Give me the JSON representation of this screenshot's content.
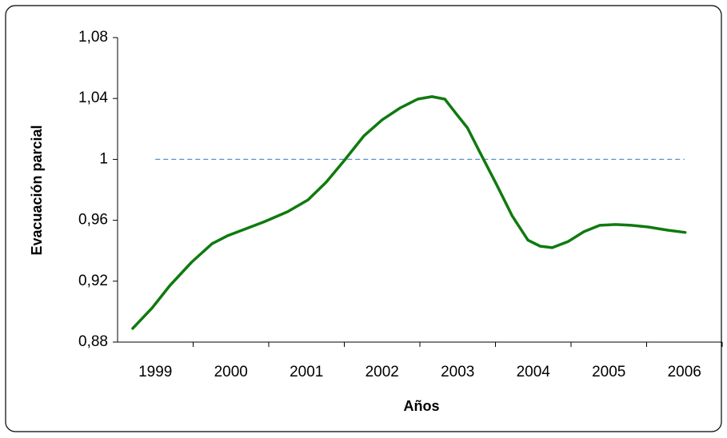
{
  "chart_data": {
    "type": "line",
    "xlabel": "Años",
    "ylabel": "Evacuación parcial",
    "x": [
      1998.7,
      1998.96,
      1999.19,
      1999.48,
      1999.75,
      1999.96,
      2000.44,
      2000.75,
      2001.02,
      2001.26,
      2001.49,
      2001.76,
      2002.0,
      2002.24,
      2002.47,
      2002.66,
      2002.83,
      2002.98,
      2003.13,
      2003.29,
      2003.51,
      2003.72,
      2003.93,
      2004.09,
      2004.25,
      2004.46,
      2004.67,
      2004.88,
      2005.09,
      2005.3,
      2005.52,
      2005.78,
      2006.01
    ],
    "series": [
      {
        "name": "Evacuación parcial",
        "color": "#0f7a0f",
        "values": [
          0.889,
          0.9026,
          0.917,
          0.9325,
          0.9446,
          0.95,
          0.959,
          0.9656,
          0.9734,
          0.985,
          0.9987,
          1.0155,
          1.026,
          1.0338,
          1.0396,
          1.0412,
          1.0396,
          1.03,
          1.0207,
          1.005,
          0.984,
          0.963,
          0.947,
          0.943,
          0.942,
          0.946,
          0.9525,
          0.9567,
          0.9572,
          0.9567,
          0.9556,
          0.9535,
          0.952
        ]
      }
    ],
    "reference_line": {
      "value": 1,
      "color": "#5b8fc7"
    },
    "xlim": [
      1998.5,
      2006.5
    ],
    "xticks": [
      1999,
      2000,
      2001,
      2002,
      2003,
      2004,
      2005,
      2006
    ],
    "ylim": [
      0.88,
      1.08
    ],
    "yticks": [
      {
        "value": 0.88,
        "label": "0,88"
      },
      {
        "value": 0.92,
        "label": "0,92"
      },
      {
        "value": 0.96,
        "label": "0,96"
      },
      {
        "value": 1,
        "label": "1"
      },
      {
        "value": 1.04,
        "label": "1,04"
      },
      {
        "value": 1.08,
        "label": "1,08"
      }
    ]
  }
}
